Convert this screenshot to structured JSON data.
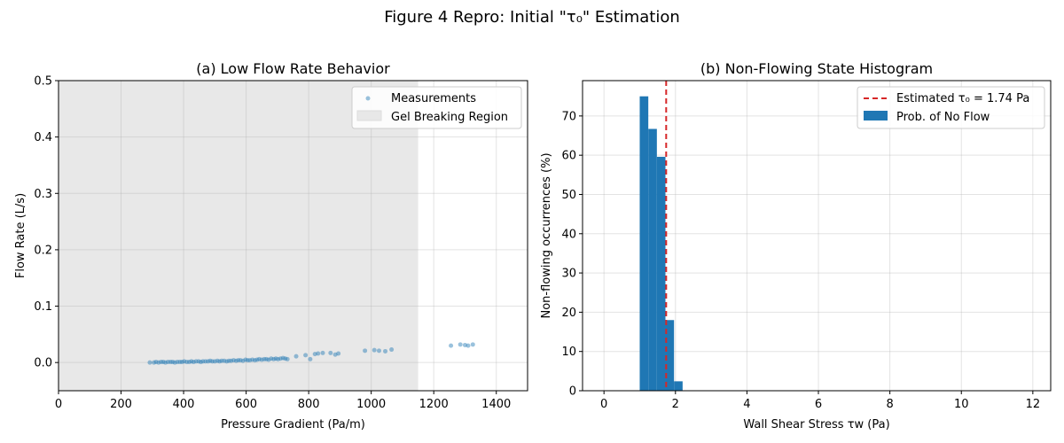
{
  "figure": {
    "suptitle": "Figure 4 Repro: Initial \"τ₀\" Estimation"
  },
  "chart_data": [
    {
      "type": "scatter",
      "title": "(a) Low Flow Rate Behavior",
      "xlabel": "Pressure Gradient (Pa/m)",
      "ylabel": "Flow Rate (L/s)",
      "xlim": [
        0,
        1500
      ],
      "ylim": [
        -0.05,
        0.5
      ],
      "xticks": [
        0,
        200,
        400,
        600,
        800,
        1000,
        1200,
        1400
      ],
      "yticks": [
        0.0,
        0.1,
        0.2,
        0.3,
        0.4,
        0.5
      ],
      "grid": true,
      "legend_position": "top-right",
      "shaded_region": {
        "label": "Gel Breaking Region",
        "x": [
          0,
          1150
        ],
        "color": "#e8e8e8"
      },
      "series": [
        {
          "name": "Measurements",
          "color": "#1f77b4",
          "x": [
            292,
            305,
            312,
            320,
            328,
            335,
            342,
            350,
            358,
            365,
            372,
            380,
            388,
            395,
            402,
            410,
            418,
            425,
            432,
            440,
            448,
            455,
            462,
            470,
            478,
            485,
            492,
            500,
            508,
            515,
            522,
            530,
            538,
            545,
            552,
            560,
            568,
            575,
            582,
            590,
            598,
            605,
            612,
            620,
            628,
            635,
            642,
            650,
            658,
            665,
            672,
            680,
            688,
            695,
            702,
            710,
            718,
            725,
            732,
            760,
            790,
            805,
            820,
            830,
            845,
            870,
            885,
            895,
            980,
            1010,
            1025,
            1045,
            1065,
            1255,
            1285,
            1300,
            1310,
            1325
          ],
          "y": [
            0.0,
            0.0,
            0.001,
            0.0,
            0.001,
            0.001,
            0.0,
            0.001,
            0.001,
            0.001,
            0.0,
            0.001,
            0.001,
            0.001,
            0.002,
            0.001,
            0.001,
            0.002,
            0.001,
            0.002,
            0.002,
            0.001,
            0.002,
            0.002,
            0.002,
            0.003,
            0.002,
            0.002,
            0.003,
            0.002,
            0.003,
            0.003,
            0.002,
            0.003,
            0.003,
            0.004,
            0.003,
            0.004,
            0.004,
            0.003,
            0.005,
            0.004,
            0.004,
            0.005,
            0.004,
            0.005,
            0.006,
            0.005,
            0.006,
            0.006,
            0.005,
            0.007,
            0.006,
            0.007,
            0.006,
            0.007,
            0.008,
            0.007,
            0.006,
            0.011,
            0.013,
            0.006,
            0.015,
            0.016,
            0.017,
            0.017,
            0.014,
            0.016,
            0.021,
            0.022,
            0.021,
            0.02,
            0.023,
            0.03,
            0.032,
            0.031,
            0.03,
            0.032
          ]
        }
      ]
    },
    {
      "type": "bar",
      "title": "(b) Non-Flowing State Histogram",
      "xlabel": "Wall Shear Stress τw (Pa)",
      "ylabel": "Non-flowing occurrences (%)",
      "xlim": [
        -0.6,
        12.5
      ],
      "ylim": [
        0,
        79
      ],
      "xticks": [
        0,
        2,
        4,
        6,
        8,
        10,
        12
      ],
      "yticks": [
        0,
        10,
        20,
        30,
        40,
        50,
        60,
        70
      ],
      "grid": true,
      "legend_position": "top-right",
      "bin_width": 0.24,
      "bar_color": "#1f77b4",
      "bins": [
        {
          "x": 1.0,
          "value": 75
        },
        {
          "x": 1.24,
          "value": 66.7
        },
        {
          "x": 1.48,
          "value": 59.6
        },
        {
          "x": 1.72,
          "value": 18
        },
        {
          "x": 1.96,
          "value": 2.4
        }
      ],
      "series_name": "Prob. of No Flow",
      "threshold": {
        "x": 1.74,
        "label": "Estimated τ₀ = 1.74 Pa",
        "color": "#d62728"
      }
    }
  ]
}
